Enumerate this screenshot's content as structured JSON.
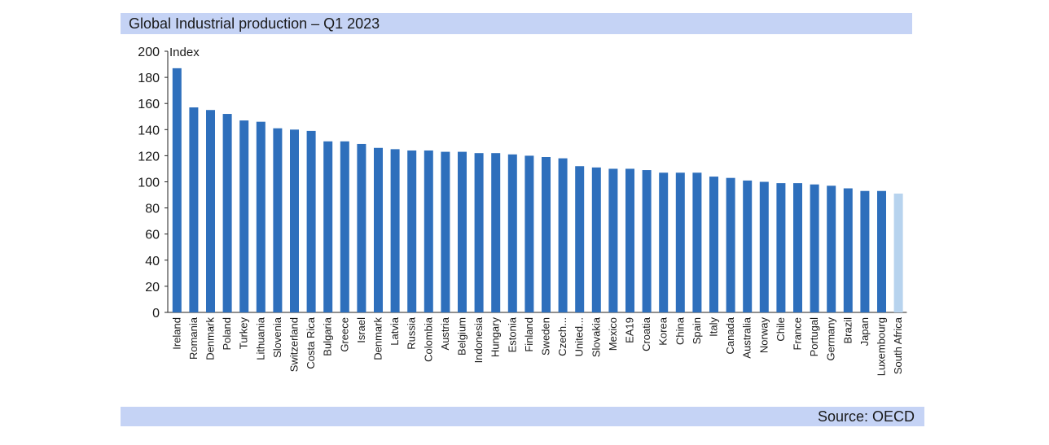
{
  "title": "Global Industrial production – Q1 2023",
  "source": "Source: OECD",
  "colors": {
    "bar": "#2e6fbc",
    "bar_highlight": "#b7d3ee",
    "header_band": "#c5d3f5"
  },
  "chart_data": {
    "type": "bar",
    "title": "Global Industrial production – Q1 2023",
    "ylabel": "Index",
    "xlabel": "",
    "ylim": [
      0,
      200
    ],
    "yticks": [
      0,
      20,
      40,
      60,
      80,
      100,
      120,
      140,
      160,
      180,
      200
    ],
    "grid": false,
    "highlight_category": "South Africa",
    "categories": [
      "Ireland",
      "Romania",
      "Denmark",
      "Poland",
      "Turkey",
      "Lithuania",
      "Slovenia",
      "Switzerland",
      "Costa Rica",
      "Bulgaria",
      "Greece",
      "Israel",
      "Denmark",
      "Latvia",
      "Russia",
      "Colombia",
      "Austria",
      "Belgium",
      "Indonesia",
      "Hungary",
      "Estonia",
      "Finland",
      "Sweden",
      "Czech...",
      "United...",
      "Slovakia",
      "Mexico",
      "EA19",
      "Croatia",
      "Korea",
      "China",
      "Spain",
      "Italy",
      "Canada",
      "Australia",
      "Norway",
      "Chile",
      "France",
      "Portugal",
      "Germany",
      "Brazil",
      "Japan",
      "Luxembourg",
      "South Africa"
    ],
    "values": [
      187,
      157,
      155,
      152,
      147,
      146,
      141,
      140,
      139,
      131,
      131,
      129,
      126,
      125,
      124,
      124,
      123,
      123,
      122,
      122,
      121,
      120,
      119,
      118,
      112,
      111,
      110,
      110,
      109,
      107,
      107,
      107,
      104,
      103,
      101,
      100,
      99,
      99,
      98,
      97,
      95,
      93,
      93,
      91
    ]
  }
}
